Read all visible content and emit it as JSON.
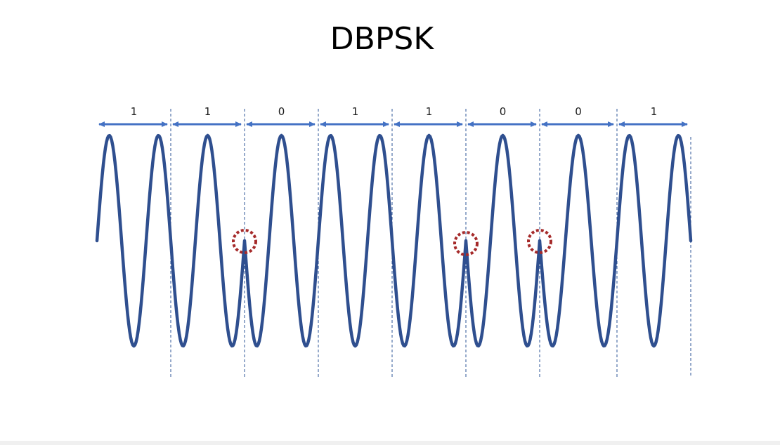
{
  "title": "DBPSK",
  "bits": [
    "1",
    "1",
    "0",
    "1",
    "1",
    "0",
    "0",
    "1"
  ],
  "colors": {
    "wave": "#2f4f8f",
    "arrow": "#4472c4",
    "divider": "#2e5597",
    "marker": "#a52a2a",
    "text": "#1a1a1a"
  }
}
